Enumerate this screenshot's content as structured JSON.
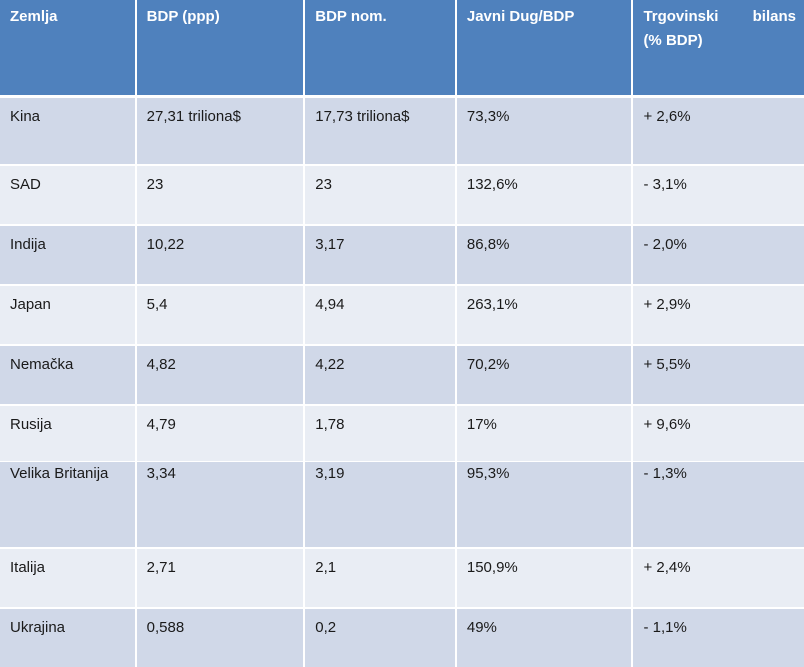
{
  "table": {
    "headers": [
      "Zemlja",
      "BDP (ppp)",
      "BDP nom.",
      "Javni Dug/BDP",
      "Trgovinski bilans (% BDP)"
    ],
    "header_trade_parts": [
      "Trgovinski",
      "bilans",
      "(% BDP)"
    ],
    "rows": [
      [
        "Kina",
        "27,31 triliona$",
        "17,73 triliona$",
        "73,3%",
        "+ 2,6%"
      ],
      [
        "SAD",
        "23",
        "23",
        "132,6%",
        "- 3,1%"
      ],
      [
        "Indija",
        "10,22",
        "3,17",
        "86,8%",
        "- 2,0%"
      ],
      [
        "Japan",
        "5,4",
        "4,94",
        "263,1%",
        "+ 2,9%"
      ],
      [
        "Nemačka",
        "4,82",
        "4,22",
        "70,2%",
        "+ 5,5%"
      ],
      [
        "Rusija",
        "4,79",
        "1,78",
        "17%",
        "+ 9,6%"
      ],
      [
        "Velika Britanija",
        "3,34",
        "3,19",
        "95,3%",
        "- 1,3%"
      ],
      [
        "Italija",
        "2,71",
        "2,1",
        "150,9%",
        "+ 2,4%"
      ],
      [
        "Ukrajina",
        "0,588",
        "0,2",
        "49%",
        "- 1,1%"
      ]
    ]
  },
  "colors": {
    "header_bg": "#4f81bd",
    "row_odd_bg": "#d0d8e8",
    "row_even_bg": "#e9edf4",
    "separator": "#ffffff"
  }
}
